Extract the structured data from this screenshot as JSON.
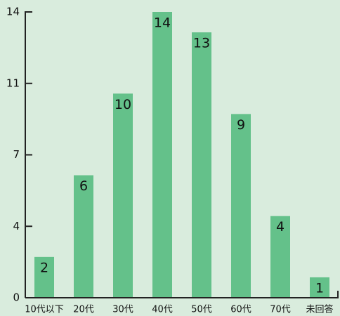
{
  "chart_data": {
    "type": "bar",
    "categories": [
      "10代以下",
      "20代",
      "30代",
      "40代",
      "50代",
      "60代",
      "70代",
      "未回答"
    ],
    "values": [
      2,
      6,
      10,
      14,
      13,
      9,
      4,
      1
    ],
    "color": "#64c18a",
    "ylim": [
      0,
      14
    ],
    "yticks": [
      0,
      {
        "value": 3.5,
        "label": "4"
      },
      7,
      {
        "value": 10.5,
        "label": "11"
      },
      14
    ],
    "grid": false
  }
}
